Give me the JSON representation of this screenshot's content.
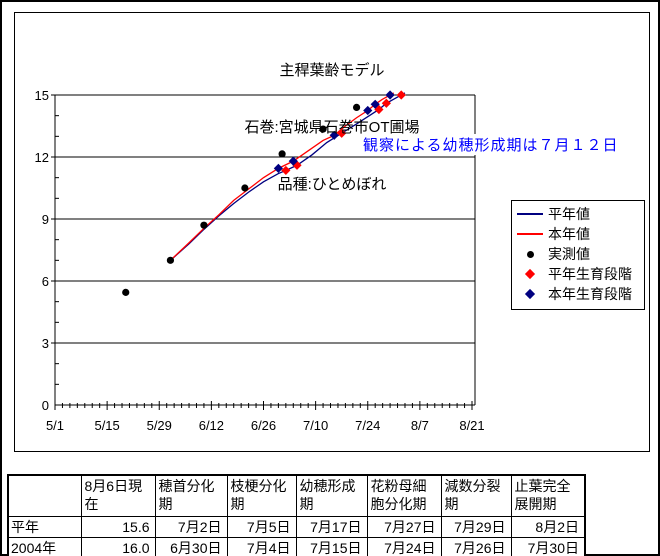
{
  "chart_data": {
    "type": "line",
    "title_lines": [
      "主稈葉齢モデル",
      "石巻:宮城県石巻市OT圃場",
      "品種:ひとめぼれ"
    ],
    "x_axis": {
      "tick_labels": [
        "5/1",
        "5/15",
        "5/29",
        "6/12",
        "6/26",
        "7/10",
        "7/24",
        "8/7",
        "8/21"
      ],
      "major_tick_days": 14,
      "minor_tick_days": 2,
      "range_days": [
        0,
        112
      ]
    },
    "y_axis": {
      "tick_labels": [
        0,
        3,
        6,
        9,
        12,
        15
      ],
      "min": 0,
      "max": 15,
      "major_step": 3,
      "minor_step": 1
    },
    "grid": "horizontal-major-on",
    "legend_position": "right",
    "annotation": {
      "text": "観察による幼穂形成期は７月１２日",
      "color": "#0000ff"
    },
    "series": [
      {
        "id": "normal-year-line",
        "name": "平年値",
        "type": "line",
        "color": "#000080",
        "points": [
          [
            "6/1",
            7.0
          ],
          [
            "6/6",
            7.8
          ],
          [
            "6/10",
            8.5
          ],
          [
            "6/14",
            9.15
          ],
          [
            "6/18",
            9.75
          ],
          [
            "6/22",
            10.3
          ],
          [
            "6/26",
            10.8
          ],
          [
            "6/30",
            11.2
          ],
          [
            "7/2",
            11.35
          ],
          [
            "7/5",
            11.6
          ],
          [
            "7/9",
            12.1
          ],
          [
            "7/13",
            12.7
          ],
          [
            "7/17",
            13.15
          ],
          [
            "7/21",
            13.6
          ],
          [
            "7/24",
            13.95
          ],
          [
            "7/27",
            14.3
          ],
          [
            "7/29",
            14.6
          ],
          [
            "8/1",
            14.9
          ],
          [
            "8/3",
            15.1
          ]
        ]
      },
      {
        "id": "current-year-line",
        "name": "本年値",
        "type": "line",
        "color": "#ff0000",
        "points": [
          [
            "6/1",
            7.0
          ],
          [
            "6/6",
            7.85
          ],
          [
            "6/10",
            8.55
          ],
          [
            "6/14",
            9.2
          ],
          [
            "6/18",
            9.9
          ],
          [
            "6/22",
            10.45
          ],
          [
            "6/26",
            11.0
          ],
          [
            "6/30",
            11.45
          ],
          [
            "7/4",
            11.8
          ],
          [
            "7/8",
            12.3
          ],
          [
            "7/12",
            12.8
          ],
          [
            "7/15",
            13.05
          ],
          [
            "7/18",
            13.5
          ],
          [
            "7/21",
            13.9
          ],
          [
            "7/24",
            14.25
          ],
          [
            "7/26",
            14.55
          ],
          [
            "7/28",
            14.8
          ],
          [
            "7/31",
            15.1
          ]
        ]
      },
      {
        "id": "measured-points",
        "name": "実測値",
        "type": "scatter",
        "marker": "circle",
        "color": "#000000",
        "points": [
          [
            "5/20",
            5.45
          ],
          [
            "6/1",
            7.0
          ],
          [
            "6/10",
            8.7
          ],
          [
            "6/21",
            10.5
          ],
          [
            "7/1",
            12.15
          ],
          [
            "7/12",
            13.35
          ],
          [
            "7/21",
            14.4
          ]
        ]
      },
      {
        "id": "normal-year-stages",
        "name": "平年生育段階",
        "type": "scatter",
        "marker": "diamond",
        "color": "#ff0000",
        "points": [
          [
            "7/2",
            11.35
          ],
          [
            "7/5",
            11.6
          ],
          [
            "7/17",
            13.15
          ],
          [
            "7/27",
            14.3
          ],
          [
            "7/29",
            14.6
          ],
          [
            "8/2",
            15.0
          ]
        ]
      },
      {
        "id": "current-year-stages",
        "name": "本年生育段階",
        "type": "scatter",
        "marker": "diamond",
        "color": "#000080",
        "points": [
          [
            "6/30",
            11.45
          ],
          [
            "7/4",
            11.8
          ],
          [
            "7/15",
            13.05
          ],
          [
            "7/24",
            14.25
          ],
          [
            "7/26",
            14.55
          ],
          [
            "7/30",
            15.0
          ]
        ]
      }
    ]
  },
  "table": {
    "headers": [
      "",
      "8月6日現在",
      "穂首分化期",
      "枝梗分化期",
      "幼穂形成期",
      "花粉母細胞分化期",
      "減数分裂期",
      "止葉完全展開期"
    ],
    "rows": [
      {
        "label": "平年",
        "values": [
          "15.6",
          "7月2日",
          "7月5日",
          "7月17日",
          "7月27日",
          "7月29日",
          "8月2日"
        ]
      },
      {
        "label": "2004年",
        "values": [
          "16.0",
          "6月30日",
          "7月4日",
          "7月15日",
          "7月24日",
          "7月26日",
          "7月30日"
        ]
      }
    ]
  },
  "colors": {
    "normal_year": "#000080",
    "current_year": "#ff0000",
    "measured": "#000000",
    "annotation_text": "#0000ff",
    "axis": "#000000"
  }
}
